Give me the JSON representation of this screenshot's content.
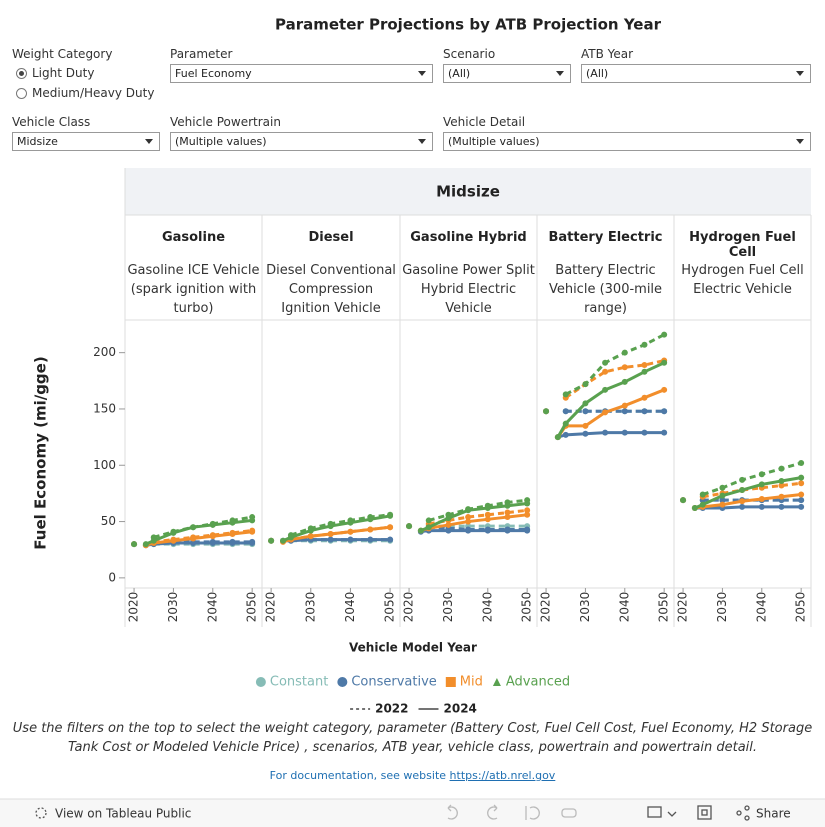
{
  "chart_data": {
    "type": "line",
    "title": "Parameter Projections by ATB Projection Year",
    "group": "Midsize",
    "y_label": "Fuel Economy (mi/gge)",
    "x_label": "Vehicle Model Year",
    "panels": [
      {
        "name": "Gasoline",
        "detail": "Gasoline ICE Vehicle (spark ignition with turbo)"
      },
      {
        "name": "Diesel",
        "detail": "Diesel Conventional Compression Ignition Vehicle"
      },
      {
        "name": "Gasoline Hybrid",
        "detail": "Gasoline Power Split Hybrid Electric Vehicle"
      },
      {
        "name": "Battery Electric",
        "detail": "Battery Electric Vehicle (300-mile range)"
      },
      {
        "name": "Hydrogen Fuel Cell",
        "detail": "Hydrogen Fuel Cell Electric Vehicle"
      }
    ],
    "x": [
      2020,
      2023,
      2025,
      2030,
      2035,
      2040,
      2045,
      2050
    ],
    "xlim": [
      2017.7,
      2052.5
    ],
    "xticks": [
      2020,
      2030,
      2040,
      2050
    ],
    "ylim": [
      -9,
      229
    ],
    "yticks": [
      0,
      50,
      100,
      150,
      200
    ],
    "grid": false,
    "series": [
      {
        "name": "Constant",
        "atb_year": "2022",
        "color": "#86bcb6",
        "line_style": "dashed",
        "marker": "circle",
        "values": [
          [
            30,
            null,
            30,
            30,
            30,
            30,
            30,
            30
          ],
          [
            33,
            null,
            33,
            33,
            33,
            33,
            33,
            33
          ],
          [
            46,
            null,
            46,
            46,
            46,
            46,
            46,
            46
          ],
          [
            148,
            null,
            148,
            148,
            148,
            148,
            148,
            148
          ],
          [
            69,
            null,
            69,
            69,
            69,
            69,
            69,
            69
          ]
        ]
      },
      {
        "name": "Conservative",
        "atb_year": "2022",
        "color": "#4e79a7",
        "line_style": "dashed",
        "marker": "circle",
        "values": [
          [
            30,
            null,
            31,
            32,
            32,
            32,
            32,
            32
          ],
          [
            33,
            null,
            34,
            34,
            34,
            34,
            34,
            34
          ],
          [
            46,
            null,
            45,
            44,
            43,
            43,
            43,
            43
          ],
          [
            148,
            null,
            148,
            148,
            148,
            148,
            148,
            148
          ],
          [
            69,
            null,
            69,
            69,
            69,
            69,
            69,
            69
          ]
        ]
      },
      {
        "name": "Mid",
        "atb_year": "2022",
        "color": "#f28e2b",
        "line_style": "dashed",
        "marker": "square",
        "values": [
          [
            30,
            null,
            32,
            34,
            36,
            38,
            40,
            42
          ],
          [
            33,
            null,
            34,
            37,
            39,
            41,
            43,
            45
          ],
          [
            46,
            null,
            48,
            51,
            54,
            56,
            58,
            60
          ],
          [
            148,
            null,
            160,
            172,
            183,
            187,
            189,
            193
          ],
          [
            69,
            null,
            72,
            75,
            78,
            80,
            82,
            84
          ]
        ]
      },
      {
        "name": "Advanced",
        "atb_year": "2022",
        "color": "#59a14f",
        "line_style": "dashed",
        "marker": "triangle",
        "values": [
          [
            30,
            null,
            36,
            41,
            45,
            48,
            51,
            54
          ],
          [
            33,
            null,
            38,
            44,
            48,
            51,
            54,
            56
          ],
          [
            46,
            null,
            51,
            56,
            61,
            64,
            67,
            69
          ],
          [
            148,
            null,
            163,
            172,
            191,
            200,
            207,
            216
          ],
          [
            69,
            null,
            74,
            80,
            87,
            92,
            97,
            102
          ]
        ]
      },
      {
        "name": "Conservative",
        "atb_year": "2024",
        "color": "#4e79a7",
        "line_style": "solid",
        "marker": "circle",
        "values": [
          [
            null,
            29,
            30,
            31,
            31,
            31,
            31,
            31
          ],
          [
            null,
            33,
            33,
            34,
            34,
            34,
            34,
            34
          ],
          [
            null,
            41,
            42,
            42,
            42,
            42,
            42,
            42
          ],
          [
            null,
            125,
            127,
            128,
            129,
            129,
            129,
            129
          ],
          [
            null,
            62,
            62,
            62,
            63,
            63,
            63,
            63
          ]
        ]
      },
      {
        "name": "Mid",
        "atb_year": "2024",
        "color": "#f28e2b",
        "line_style": "solid",
        "marker": "square",
        "values": [
          [
            null,
            29,
            31,
            33,
            35,
            37,
            39,
            41
          ],
          [
            null,
            32,
            34,
            37,
            39,
            41,
            43,
            45
          ],
          [
            null,
            42,
            44,
            47,
            50,
            52,
            54,
            56
          ],
          [
            null,
            125,
            135,
            135,
            147,
            153,
            160,
            167
          ],
          [
            null,
            62,
            63,
            65,
            68,
            70,
            72,
            74
          ]
        ]
      },
      {
        "name": "Advanced",
        "atb_year": "2024",
        "color": "#59a14f",
        "line_style": "solid",
        "marker": "triangle",
        "values": [
          [
            null,
            30,
            33,
            40,
            45,
            47,
            49,
            51
          ],
          [
            null,
            33,
            36,
            42,
            46,
            49,
            52,
            55
          ],
          [
            null,
            42,
            45,
            53,
            60,
            62,
            64,
            66
          ],
          [
            null,
            125,
            137,
            155,
            167,
            174,
            183,
            191
          ],
          [
            null,
            62,
            65,
            73,
            78,
            83,
            86,
            89
          ]
        ]
      }
    ]
  },
  "filters": [
    {
      "label": "Weight Category",
      "options": [
        "Light Duty",
        "Medium/Heavy Duty"
      ],
      "selected": 0
    },
    {
      "label": "Parameter",
      "value": "Fuel Economy"
    },
    {
      "label": "Scenario",
      "value": "(All)"
    },
    {
      "label": "ATB Year",
      "value": "(All)"
    },
    {
      "label": "Vehicle Class",
      "value": "Midsize"
    },
    {
      "label": "Vehicle Powertrain",
      "value": "(Multiple values)"
    },
    {
      "label": "Vehicle Detail",
      "value": "(Multiple values)"
    }
  ],
  "caption": "Use the filters on the top to select the weight category, parameter (Battery Cost, Fuel Cell Cost, Fuel Economy, H2 Storage Tank Cost or Modeled Vehicle Price) , scenarios, ATB year, vehicle class, powertrain and powertrain detail.",
  "doc_text": "For documentation, see website",
  "doc_link": "https://atb.nrel.gov",
  "toolbar": {
    "view": "View on Tableau Public",
    "share": "Share"
  }
}
